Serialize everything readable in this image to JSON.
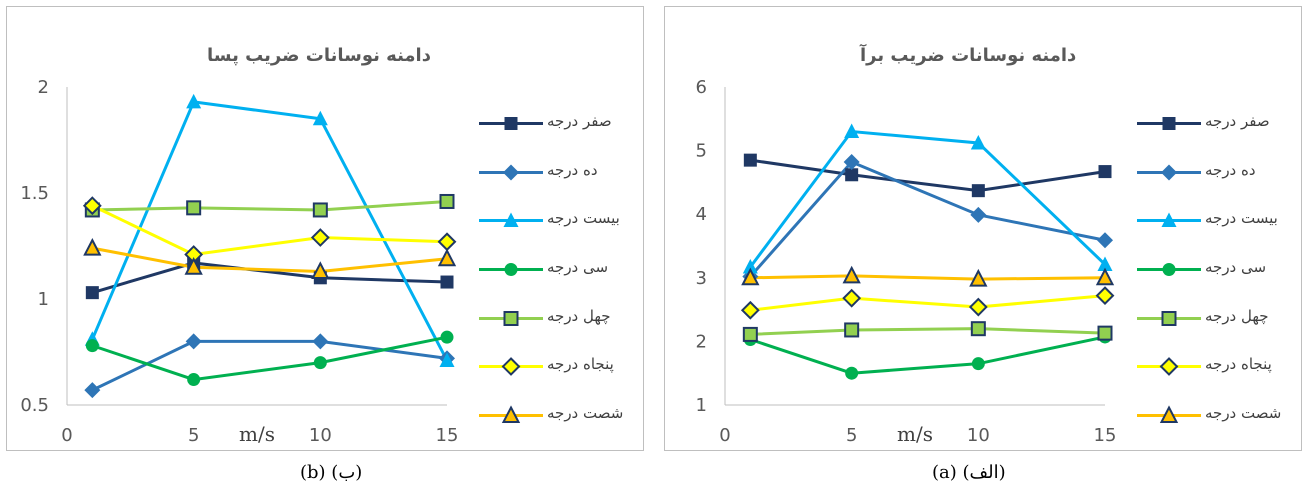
{
  "chart_data": [
    {
      "id": "b",
      "type": "line",
      "title": "دامنه نوسانات ضریب پسا",
      "xlabel": "m/s",
      "xlim": [
        0,
        15
      ],
      "ylim": [
        0.5,
        2
      ],
      "xticks": [
        "0",
        "5",
        "10",
        "15"
      ],
      "yticks": [
        "0.5",
        "1",
        "1.5",
        "2"
      ],
      "x": [
        1,
        5,
        10,
        15
      ],
      "legend_position": "right",
      "series": [
        {
          "name": "صفر درجه",
          "color": "#1f3864",
          "marker": "square",
          "values": [
            1.03,
            1.17,
            1.1,
            1.08
          ]
        },
        {
          "name": "ده درجه",
          "color": "#2e75b6",
          "marker": "diamond",
          "values": [
            0.57,
            0.8,
            0.8,
            0.72
          ]
        },
        {
          "name": "بیست درجه",
          "color": "#00b0f0",
          "marker": "triangle",
          "values": [
            0.81,
            1.93,
            1.85,
            0.71
          ]
        },
        {
          "name": "سی درجه",
          "color": "#00b050",
          "marker": "circle",
          "values": [
            0.78,
            0.62,
            0.7,
            0.82
          ]
        },
        {
          "name": "چهل درجه",
          "color": "#92d050",
          "marker": "square-outline",
          "values": [
            1.42,
            1.43,
            1.42,
            1.46
          ]
        },
        {
          "name": "پنجاه درجه",
          "color": "#ffff00",
          "marker": "diamond-outline",
          "values": [
            1.44,
            1.21,
            1.29,
            1.27
          ]
        },
        {
          "name": "شصت درجه",
          "color": "#ffc000",
          "marker": "triangle-outline",
          "values": [
            1.24,
            1.15,
            1.13,
            1.19
          ]
        }
      ]
    },
    {
      "id": "a",
      "type": "line",
      "title": "دامنه نوسانات ضریب برآ",
      "xlabel": "m/s",
      "xlim": [
        0,
        15
      ],
      "ylim": [
        1,
        6
      ],
      "xticks": [
        "0",
        "5",
        "10",
        "15"
      ],
      "yticks": [
        "1",
        "2",
        "3",
        "4",
        "5",
        "6"
      ],
      "x": [
        1,
        5,
        10,
        15
      ],
      "legend_position": "right",
      "series": [
        {
          "name": "صفر درجه",
          "color": "#1f3864",
          "marker": "square",
          "values": [
            4.85,
            4.62,
            4.37,
            4.67
          ]
        },
        {
          "name": "ده درجه",
          "color": "#2e75b6",
          "marker": "diamond",
          "values": [
            3.02,
            4.82,
            3.99,
            3.59
          ]
        },
        {
          "name": "بیست درجه",
          "color": "#00b0f0",
          "marker": "triangle",
          "values": [
            3.17,
            5.3,
            5.12,
            3.21
          ]
        },
        {
          "name": "سی درجه",
          "color": "#00b050",
          "marker": "circle",
          "values": [
            2.03,
            1.5,
            1.65,
            2.07
          ]
        },
        {
          "name": "چهل درجه",
          "color": "#92d050",
          "marker": "square-outline",
          "values": [
            2.11,
            2.18,
            2.2,
            2.13
          ]
        },
        {
          "name": "پنجاه درجه",
          "color": "#ffff00",
          "marker": "diamond-outline",
          "values": [
            2.49,
            2.68,
            2.54,
            2.72
          ]
        },
        {
          "name": "شصت درجه",
          "color": "#ffc000",
          "marker": "triangle-outline",
          "values": [
            3.0,
            3.03,
            2.98,
            3.0
          ]
        }
      ]
    }
  ],
  "captions": {
    "b": "(b) (ب)",
    "a": "(a) (الف)"
  }
}
